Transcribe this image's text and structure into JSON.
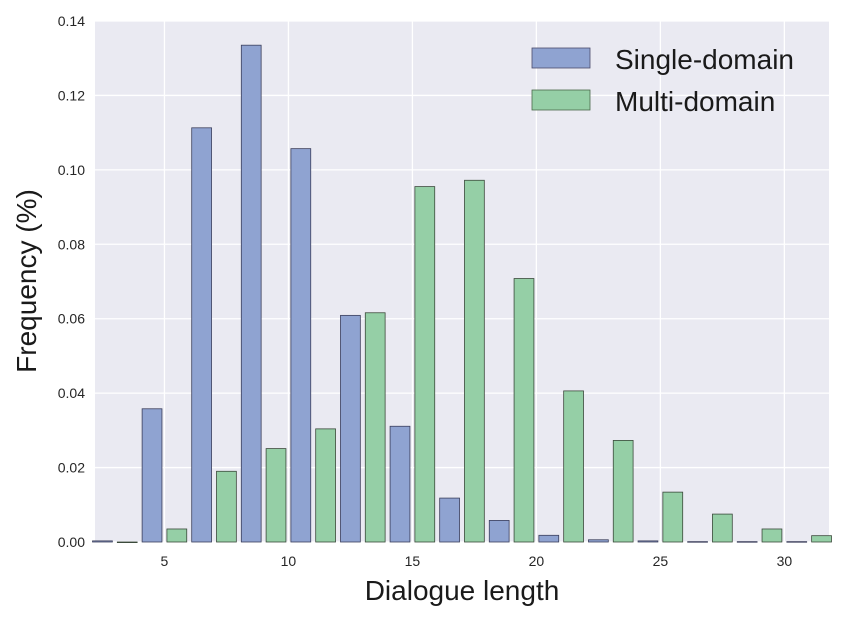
{
  "chart_data": {
    "type": "bar",
    "xlabel": "Dialogue length",
    "ylabel": "Frequency (%)",
    "xlim": [
      2.2,
      31.8
    ],
    "ylim": [
      0,
      0.14
    ],
    "xticks": [
      5,
      10,
      15,
      20,
      25,
      30
    ],
    "yticks": [
      0.0,
      0.02,
      0.04,
      0.06,
      0.08,
      0.1,
      0.12,
      0.14
    ],
    "x": [
      3,
      5,
      7,
      9,
      11,
      13,
      15,
      17,
      19,
      21,
      23,
      25,
      27,
      29,
      31
    ],
    "series": [
      {
        "name": "Single-domain",
        "color": "#8fa3d1",
        "values": [
          0.0003,
          0.0358,
          0.1113,
          0.1335,
          0.1057,
          0.0609,
          0.0311,
          0.0118,
          0.0058,
          0.0018,
          0.0006,
          0.0003,
          0.0001,
          0.0001,
          0.0001
        ]
      },
      {
        "name": "Multi-domain",
        "color": "#95cfa6",
        "values": [
          0.0,
          0.0035,
          0.019,
          0.0251,
          0.0304,
          0.0616,
          0.0955,
          0.0972,
          0.0708,
          0.0406,
          0.0273,
          0.0134,
          0.0075,
          0.0035,
          0.0017
        ]
      }
    ],
    "grid": true,
    "legend_position": "top-right"
  }
}
